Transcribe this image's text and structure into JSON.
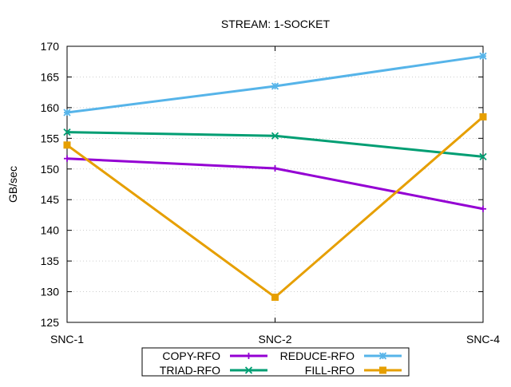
{
  "chart_data": {
    "type": "line",
    "title": "STREAM: 1-SOCKET",
    "xlabel": "",
    "ylabel": "GB/sec",
    "categories": [
      "SNC-1",
      "SNC-2",
      "SNC-4"
    ],
    "ylim": [
      125,
      170
    ],
    "yticks": [
      "125",
      "130",
      "135",
      "140",
      "145",
      "150",
      "155",
      "160",
      "165",
      "170"
    ],
    "grid": true,
    "legend_position": "bottom-center",
    "series": [
      {
        "name": "COPY-RFO",
        "color": "#9400d3",
        "marker": "plus-icon",
        "values": [
          151.7,
          150.1,
          143.5
        ]
      },
      {
        "name": "REDUCE-RFO",
        "color": "#56b4e9",
        "marker": "star-icon",
        "values": [
          159.2,
          163.5,
          168.4
        ]
      },
      {
        "name": "TRIAD-RFO",
        "color": "#009e73",
        "marker": "x-icon",
        "values": [
          156.0,
          155.4,
          152.0
        ]
      },
      {
        "name": "FILL-RFO",
        "color": "#e69f00",
        "marker": "filled-square-icon",
        "values": [
          153.9,
          129.1,
          158.5
        ]
      }
    ]
  }
}
